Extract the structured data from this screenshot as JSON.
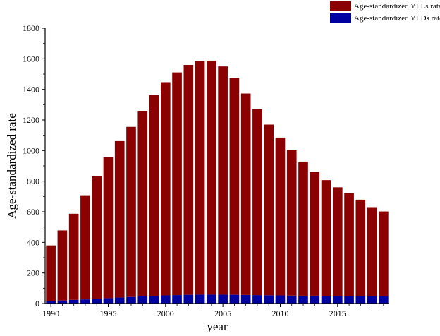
{
  "chart_data": {
    "type": "bar",
    "stacked": true,
    "x": [
      1990,
      1991,
      1992,
      1993,
      1994,
      1995,
      1996,
      1997,
      1998,
      1999,
      2000,
      2001,
      2002,
      2003,
      2004,
      2005,
      2006,
      2007,
      2008,
      2009,
      2010,
      2011,
      2012,
      2013,
      2014,
      2015,
      2016,
      2017,
      2018,
      2019
    ],
    "series": [
      {
        "name": "Age-standardized YLDs rate",
        "color": "#0000a0",
        "values": [
          17,
          20,
          24,
          27,
          31,
          35,
          39,
          43,
          47,
          50,
          53,
          55,
          57,
          58,
          58,
          58,
          57,
          56,
          55,
          54,
          53,
          52,
          51,
          51,
          50,
          50,
          49,
          49,
          48,
          48
        ]
      },
      {
        "name": "Age-standardized YLLs rate",
        "color": "#8b0000",
        "values": [
          363,
          458,
          563,
          681,
          801,
          922,
          1023,
          1112,
          1213,
          1312,
          1394,
          1456,
          1503,
          1527,
          1530,
          1492,
          1418,
          1317,
          1215,
          1116,
          1032,
          954,
          877,
          809,
          757,
          710,
          673,
          630,
          582,
          554
        ]
      }
    ],
    "xlabel": "year",
    "ylabel": "Age-standardized rate",
    "ylim": [
      0,
      1800
    ],
    "y_ticks": [
      0,
      200,
      400,
      600,
      800,
      1000,
      1200,
      1400,
      1600,
      1800
    ],
    "x_ticks": [
      1990,
      1995,
      2000,
      2005,
      2010,
      2015
    ],
    "grid": false,
    "legend_position": "top-right"
  }
}
